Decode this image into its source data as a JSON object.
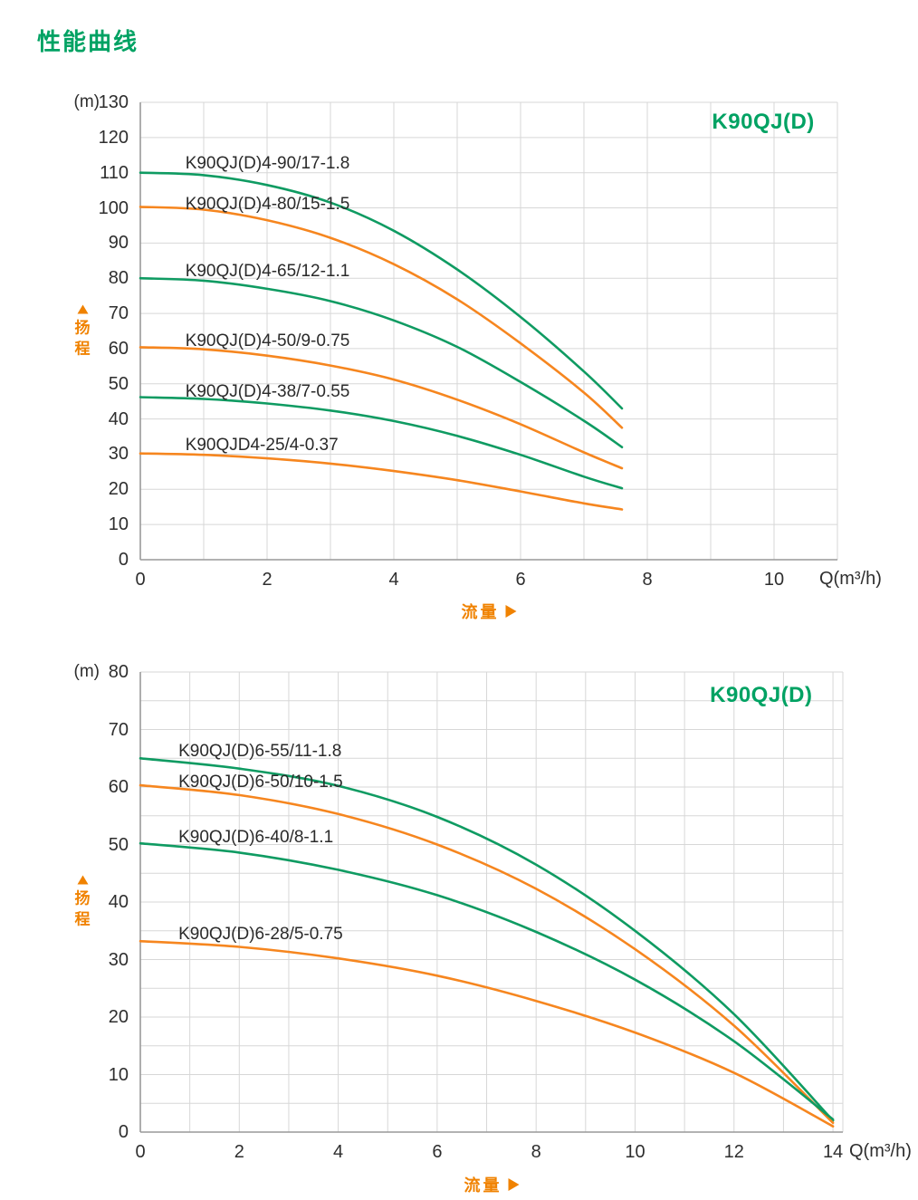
{
  "title": "性能曲线",
  "axis_unit_label": "(m)",
  "flow_axis_label": "流量",
  "head_axis_label": [
    "扬",
    "程"
  ],
  "icons": {
    "head_arrow": "up-triangle-icon",
    "flow_arrow": "right-triangle-icon"
  },
  "colors": {
    "title_green": "#00a263",
    "curve_green": "#0f9b62",
    "curve_orange": "#f6861f",
    "accent_orange": "#f08200",
    "grid": "#d7d7d7",
    "axis": "#999999",
    "tick_text": "#2e2e2e",
    "label_text": "#2a2a2a"
  },
  "chart_data": [
    {
      "type": "line",
      "badge": "K90QJ(D)",
      "xlabel": "Q(m³/h)",
      "ylabel": "扬程 (m)",
      "legend": "none",
      "grid": true,
      "x_axis": {
        "min": 0,
        "max": 11,
        "grid_step": 1,
        "tick_step": 2,
        "tick_labels": [
          0,
          2,
          4,
          6,
          8,
          10
        ]
      },
      "y_axis": {
        "min": 0,
        "max": 130,
        "grid_step": 10,
        "tick_step": 10
      },
      "badge_pos": [
        9.83,
        124.3
      ],
      "series": [
        {
          "name": "K90QJ(D)4-90/17-1.8",
          "color": "green",
          "label_pos": [
            0.71,
            112.4
          ],
          "points": [
            [
              0,
              110
            ],
            [
              1,
              109.3
            ],
            [
              2,
              106.5
            ],
            [
              3,
              101.5
            ],
            [
              4,
              93.5
            ],
            [
              5,
              82.5
            ],
            [
              6,
              69
            ],
            [
              7,
              53.5
            ],
            [
              7.6,
              43
            ]
          ]
        },
        {
          "name": "K90QJ(D)4-80/15-1.5",
          "color": "orange",
          "label_pos": [
            0.71,
            101.0
          ],
          "points": [
            [
              0,
              100.3
            ],
            [
              1,
              99.5
            ],
            [
              2,
              96.5
            ],
            [
              3,
              91.5
            ],
            [
              4,
              84
            ],
            [
              5,
              74
            ],
            [
              6,
              61.5
            ],
            [
              7,
              47.5
            ],
            [
              7.6,
              37.5
            ]
          ]
        },
        {
          "name": "K90QJ(D)4-65/12-1.1",
          "color": "green",
          "label_pos": [
            0.71,
            81.9
          ],
          "points": [
            [
              0,
              80
            ],
            [
              1,
              79.3
            ],
            [
              2,
              77
            ],
            [
              3,
              73.5
            ],
            [
              4,
              68
            ],
            [
              5,
              60.5
            ],
            [
              6,
              50.5
            ],
            [
              7,
              39.5
            ],
            [
              7.6,
              32
            ]
          ]
        },
        {
          "name": "K90QJ(D)4-50/9-0.75",
          "color": "orange",
          "label_pos": [
            0.71,
            62.0
          ],
          "points": [
            [
              0,
              60.4
            ],
            [
              1,
              59.8
            ],
            [
              2,
              58
            ],
            [
              3,
              55.2
            ],
            [
              4,
              51.2
            ],
            [
              5,
              45.5
            ],
            [
              6,
              38.5
            ],
            [
              7,
              30.5
            ],
            [
              7.6,
              26
            ]
          ]
        },
        {
          "name": "K90QJ(D)4-38/7-0.55",
          "color": "green",
          "label_pos": [
            0.71,
            47.6
          ],
          "points": [
            [
              0,
              46.2
            ],
            [
              1,
              45.7
            ],
            [
              2,
              44.4
            ],
            [
              3,
              42.4
            ],
            [
              4,
              39.4
            ],
            [
              5,
              35.2
            ],
            [
              6,
              29.8
            ],
            [
              7,
              23.6
            ],
            [
              7.6,
              20.3
            ]
          ]
        },
        {
          "name": "K90QJD4-25/4-0.37",
          "color": "orange",
          "label_pos": [
            0.71,
            32.4
          ],
          "points": [
            [
              0,
              30.2
            ],
            [
              1,
              29.8
            ],
            [
              2,
              28.8
            ],
            [
              3,
              27.3
            ],
            [
              4,
              25.2
            ],
            [
              5,
              22.6
            ],
            [
              6,
              19.4
            ],
            [
              7,
              16
            ],
            [
              7.6,
              14.3
            ]
          ]
        }
      ]
    },
    {
      "type": "line",
      "badge": "K90QJ(D)",
      "xlabel": "Q(m³/h)",
      "ylabel": "扬程 (m)",
      "legend": "none",
      "grid": true,
      "x_axis": {
        "min": 0,
        "max": 14.2,
        "grid_step": 1,
        "tick_step": 2,
        "tick_labels": [
          0,
          2,
          4,
          6,
          8,
          10,
          12,
          14
        ]
      },
      "y_axis": {
        "min": 0,
        "max": 80,
        "grid_step": 5,
        "tick_step": 10
      },
      "badge_pos": [
        12.55,
        75.9
      ],
      "series": [
        {
          "name": "K90QJ(D)6-55/11-1.8",
          "color": "green",
          "label_pos": [
            0.77,
            66.1
          ],
          "points": [
            [
              0,
              65
            ],
            [
              2,
              63.2
            ],
            [
              4,
              60.2
            ],
            [
              6,
              54.8
            ],
            [
              8,
              46.5
            ],
            [
              10,
              35
            ],
            [
              12,
              20.5
            ],
            [
              14,
              2
            ]
          ]
        },
        {
          "name": "K90QJ(D)6-50/10-1.5",
          "color": "orange",
          "label_pos": [
            0.77,
            60.8
          ],
          "points": [
            [
              0,
              60.3
            ],
            [
              2,
              58.6
            ],
            [
              4,
              55.3
            ],
            [
              6,
              50
            ],
            [
              8,
              42.3
            ],
            [
              10,
              31.8
            ],
            [
              12,
              18.5
            ],
            [
              14,
              1.6
            ]
          ]
        },
        {
          "name": "K90QJ(D)6-40/8-1.1",
          "color": "green",
          "label_pos": [
            0.77,
            51.2
          ],
          "points": [
            [
              0,
              50.2
            ],
            [
              2,
              48.6
            ],
            [
              4,
              45.6
            ],
            [
              6,
              41.2
            ],
            [
              8,
              34.8
            ],
            [
              10,
              26.5
            ],
            [
              12,
              15.8
            ],
            [
              14,
              2.2
            ]
          ]
        },
        {
          "name": "K90QJ(D)6-28/5-0.75",
          "color": "orange",
          "label_pos": [
            0.77,
            34.3
          ],
          "points": [
            [
              0,
              33.2
            ],
            [
              2,
              32.2
            ],
            [
              4,
              30.2
            ],
            [
              6,
              27.2
            ],
            [
              8,
              22.8
            ],
            [
              10,
              17.3
            ],
            [
              12,
              10.3
            ],
            [
              14,
              1
            ]
          ]
        }
      ]
    }
  ]
}
